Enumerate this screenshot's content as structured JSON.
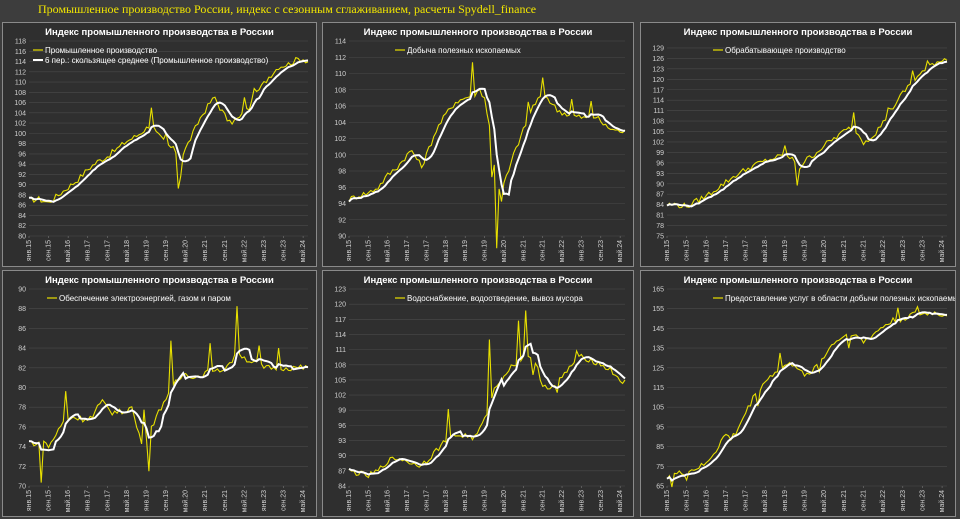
{
  "page": {
    "title": "Промышленное производство России, индекс с сезонным сглаживанием, расчеты Spydell_finance"
  },
  "colors": {
    "raw": "#e8e000",
    "ma": "#ffffff",
    "background": "#2f2f2f",
    "grid": "#4a4a4a"
  },
  "x_ticks": [
    "янв.15",
    "сен.15",
    "май.16",
    "янв.17",
    "сен.17",
    "май.18",
    "янв.19",
    "сен.19",
    "май.20",
    "янв.21",
    "сен.21",
    "май.22",
    "янв.23",
    "сен.23",
    "май.24",
    "янв.25"
  ],
  "chart_data": [
    {
      "type": "line",
      "title": "Индекс промышленного производства в России",
      "ylim": [
        80,
        118
      ],
      "ystep": 2,
      "legend": [
        "Промышленное производство",
        "6 пер.: скользящее среднее (Промышленное производство)"
      ],
      "anchors": [
        [
          0,
          87
        ],
        [
          4,
          87.2
        ],
        [
          8,
          86.5
        ],
        [
          12,
          88
        ],
        [
          16,
          89.5
        ],
        [
          20,
          91
        ],
        [
          24,
          93
        ],
        [
          28,
          94.5
        ],
        [
          32,
          95.5
        ],
        [
          36,
          97
        ],
        [
          40,
          98.5
        ],
        [
          44,
          99.5
        ],
        [
          48,
          101
        ],
        [
          50,
          102
        ],
        [
          52,
          100
        ],
        [
          56,
          98
        ],
        [
          60,
          96.5
        ],
        [
          62,
          92
        ],
        [
          63,
          96
        ],
        [
          66,
          99
        ],
        [
          70,
          103
        ],
        [
          74,
          106
        ],
        [
          76,
          107
        ],
        [
          78,
          105
        ],
        [
          82,
          102
        ],
        [
          86,
          103
        ],
        [
          90,
          105
        ],
        [
          94,
          108.5
        ],
        [
          98,
          111
        ],
        [
          102,
          113
        ],
        [
          106,
          113.5
        ],
        [
          110,
          114.5
        ],
        [
          112,
          114.5
        ],
        [
          114,
          114
        ]
      ],
      "spikes": [
        [
          61,
          -5
        ],
        [
          50,
          3
        ],
        [
          56,
          2
        ],
        [
          88,
          3
        ],
        [
          92,
          2
        ]
      ]
    },
    {
      "type": "line",
      "title": "Индекс промышленного производства в России",
      "ylim": [
        90,
        114
      ],
      "ystep": 2,
      "legend": [
        "Добыча полезных ископаемых"
      ],
      "anchors": [
        [
          0,
          94.5
        ],
        [
          4,
          95
        ],
        [
          8,
          95.3
        ],
        [
          12,
          96
        ],
        [
          16,
          97.5
        ],
        [
          20,
          98.5
        ],
        [
          24,
          100
        ],
        [
          26,
          100.5
        ],
        [
          28,
          99.5
        ],
        [
          30,
          98.5
        ],
        [
          32,
          100
        ],
        [
          36,
          103
        ],
        [
          40,
          105
        ],
        [
          44,
          106.5
        ],
        [
          48,
          107
        ],
        [
          52,
          107.5
        ],
        [
          54,
          108
        ],
        [
          56,
          107
        ],
        [
          58,
          103.5
        ],
        [
          60,
          99
        ],
        [
          62,
          96
        ],
        [
          64,
          96.5
        ],
        [
          66,
          98
        ],
        [
          68,
          100
        ],
        [
          72,
          103
        ],
        [
          76,
          106
        ],
        [
          80,
          107.5
        ],
        [
          82,
          107
        ],
        [
          86,
          105.5
        ],
        [
          90,
          105
        ],
        [
          94,
          104.7
        ],
        [
          98,
          104.5
        ],
        [
          102,
          104.7
        ],
        [
          106,
          103.5
        ],
        [
          110,
          103
        ],
        [
          114,
          102.8
        ]
      ],
      "spikes": [
        [
          51,
          4
        ],
        [
          59,
          -4
        ],
        [
          61,
          -9
        ],
        [
          63,
          -2
        ],
        [
          80,
          2
        ],
        [
          74,
          2
        ],
        [
          92,
          2
        ],
        [
          100,
          2
        ]
      ]
    },
    {
      "type": "line",
      "title": "Индекс промышленного производства в России",
      "ylim": [
        75,
        131
      ],
      "ystep": 3,
      "legend": [
        "Обрабатывающее производство"
      ],
      "anchors": [
        [
          0,
          84
        ],
        [
          4,
          84
        ],
        [
          8,
          83.5
        ],
        [
          12,
          85
        ],
        [
          16,
          86.5
        ],
        [
          20,
          88.5
        ],
        [
          24,
          90.5
        ],
        [
          28,
          92.5
        ],
        [
          32,
          94
        ],
        [
          36,
          95.5
        ],
        [
          40,
          96.5
        ],
        [
          44,
          97.5
        ],
        [
          48,
          98
        ],
        [
          52,
          96.5
        ],
        [
          54,
          94.5
        ],
        [
          56,
          96.5
        ],
        [
          60,
          98.5
        ],
        [
          64,
          101
        ],
        [
          68,
          103
        ],
        [
          72,
          105
        ],
        [
          76,
          106.5
        ],
        [
          78,
          104
        ],
        [
          80,
          102
        ],
        [
          84,
          104
        ],
        [
          88,
          107.5
        ],
        [
          92,
          112
        ],
        [
          96,
          116
        ],
        [
          100,
          119.5
        ],
        [
          104,
          122
        ],
        [
          108,
          124.5
        ],
        [
          112,
          125.5
        ],
        [
          114,
          126
        ]
      ],
      "spikes": [
        [
          53,
          -6
        ],
        [
          48,
          3
        ],
        [
          76,
          4
        ],
        [
          90,
          2
        ],
        [
          100,
          3
        ],
        [
          106,
          2
        ]
      ]
    },
    {
      "type": "line",
      "title": "Индекс промышленного производства в России",
      "ylim": [
        70,
        90
      ],
      "ystep": 2,
      "legend": [
        "Обеспечение электроэнергией, газом и паром"
      ],
      "anchors": [
        [
          0,
          74.5
        ],
        [
          4,
          74.2
        ],
        [
          6,
          74.5
        ],
        [
          8,
          74
        ],
        [
          10,
          74.8
        ],
        [
          14,
          76.5
        ],
        [
          18,
          77
        ],
        [
          22,
          76.8
        ],
        [
          26,
          77
        ],
        [
          28,
          78
        ],
        [
          30,
          78.5
        ],
        [
          34,
          77.5
        ],
        [
          38,
          77.5
        ],
        [
          42,
          78
        ],
        [
          44,
          76
        ],
        [
          46,
          74.5
        ],
        [
          48,
          75
        ],
        [
          52,
          77
        ],
        [
          56,
          79
        ],
        [
          60,
          80.5
        ],
        [
          64,
          81.5
        ],
        [
          68,
          81
        ],
        [
          72,
          81.5
        ],
        [
          76,
          81.5
        ],
        [
          80,
          82
        ],
        [
          84,
          83
        ],
        [
          86,
          83.5
        ],
        [
          88,
          83
        ],
        [
          92,
          82.5
        ],
        [
          96,
          82
        ],
        [
          100,
          82
        ],
        [
          104,
          82
        ],
        [
          108,
          82
        ],
        [
          112,
          82
        ],
        [
          114,
          82
        ]
      ],
      "spikes": [
        [
          5,
          -4
        ],
        [
          15,
          3
        ],
        [
          47,
          3
        ],
        [
          49,
          -4
        ],
        [
          58,
          5
        ],
        [
          74,
          3
        ],
        [
          85,
          5
        ],
        [
          94,
          2
        ],
        [
          102,
          2
        ]
      ]
    },
    {
      "type": "line",
      "title": "Индекс промышленного производства в России",
      "ylim": [
        84,
        123
      ],
      "ystep": 3,
      "legend": [
        "Водоснабжение, водоотведение, вывоз мусора"
      ],
      "anchors": [
        [
          0,
          87
        ],
        [
          4,
          86.5
        ],
        [
          8,
          86
        ],
        [
          12,
          87
        ],
        [
          16,
          89
        ],
        [
          20,
          89.5
        ],
        [
          24,
          89
        ],
        [
          28,
          88
        ],
        [
          32,
          89
        ],
        [
          36,
          91
        ],
        [
          40,
          93
        ],
        [
          44,
          94
        ],
        [
          48,
          94
        ],
        [
          52,
          93.5
        ],
        [
          56,
          97
        ],
        [
          60,
          103
        ],
        [
          64,
          106
        ],
        [
          68,
          108
        ],
        [
          72,
          109.5
        ],
        [
          74,
          110
        ],
        [
          76,
          109
        ],
        [
          78,
          107
        ],
        [
          80,
          104
        ],
        [
          84,
          103.5
        ],
        [
          88,
          105.5
        ],
        [
          92,
          108
        ],
        [
          96,
          109.5
        ],
        [
          100,
          109
        ],
        [
          104,
          108
        ],
        [
          108,
          107
        ],
        [
          112,
          105
        ],
        [
          114,
          104.5
        ]
      ],
      "spikes": [
        [
          41,
          6
        ],
        [
          58,
          13
        ],
        [
          70,
          8
        ],
        [
          73,
          9
        ],
        [
          76,
          -3
        ],
        [
          86,
          -2
        ],
        [
          94,
          2
        ]
      ]
    },
    {
      "type": "line",
      "title": "Индекс промышленного производства в России",
      "ylim": [
        65,
        165
      ],
      "ystep": 10,
      "legend": [
        "Предоставление услуг в области добычи полезных ископаемых"
      ],
      "anchors": [
        [
          0,
          70
        ],
        [
          4,
          71
        ],
        [
          8,
          72
        ],
        [
          12,
          74
        ],
        [
          16,
          76
        ],
        [
          18,
          80
        ],
        [
          20,
          83
        ],
        [
          22,
          88
        ],
        [
          24,
          91
        ],
        [
          26,
          89
        ],
        [
          28,
          92
        ],
        [
          32,
          102
        ],
        [
          36,
          112
        ],
        [
          40,
          118
        ],
        [
          44,
          123
        ],
        [
          48,
          126
        ],
        [
          52,
          127
        ],
        [
          54,
          124
        ],
        [
          56,
          120
        ],
        [
          60,
          125
        ],
        [
          64,
          131
        ],
        [
          68,
          138
        ],
        [
          72,
          141
        ],
        [
          76,
          143
        ],
        [
          78,
          140
        ],
        [
          80,
          138
        ],
        [
          84,
          142
        ],
        [
          88,
          146
        ],
        [
          92,
          149
        ],
        [
          96,
          150
        ],
        [
          100,
          152
        ],
        [
          104,
          152
        ],
        [
          108,
          153
        ],
        [
          112,
          152
        ],
        [
          114,
          152
        ]
      ],
      "spikes": [
        [
          2,
          -6
        ],
        [
          8,
          -4
        ],
        [
          37,
          -8
        ],
        [
          46,
          8
        ],
        [
          62,
          -5
        ],
        [
          74,
          -7
        ],
        [
          94,
          6
        ],
        [
          102,
          4
        ]
      ]
    }
  ]
}
